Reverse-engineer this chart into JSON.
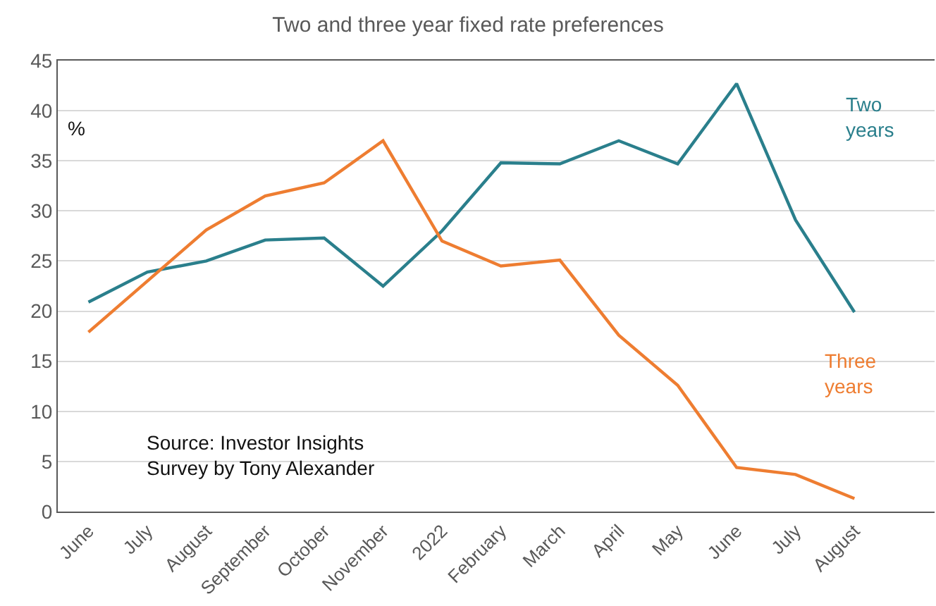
{
  "chart_data": {
    "type": "line",
    "title": "Two and three year fixed rate preferences",
    "ylabel": "%",
    "categories": [
      "June",
      "July",
      "August",
      "September",
      "October",
      "November",
      "2022",
      "February",
      "March",
      "April",
      "May",
      "June",
      "July",
      "August"
    ],
    "series": [
      {
        "name": "Two years",
        "color": "#2a7f8c",
        "values": [
          20.9,
          23.9,
          25.0,
          27.1,
          27.3,
          22.5,
          28.0,
          34.8,
          34.7,
          37.0,
          34.7,
          42.7,
          29.1,
          19.9
        ]
      },
      {
        "name": "Three years",
        "color": "#ee7d31",
        "values": [
          17.9,
          23.0,
          28.1,
          31.5,
          32.8,
          37.0,
          27.0,
          24.5,
          25.1,
          17.6,
          12.6,
          4.4,
          3.7,
          1.3
        ]
      }
    ],
    "ylim": [
      0,
      45
    ],
    "yticks": [
      0,
      5,
      10,
      15,
      20,
      25,
      30,
      35,
      40,
      45
    ],
    "grid": "y",
    "legend": false,
    "marker": "none",
    "line_style": "solid",
    "annotations": [
      "Source: Investor Insights\nSurvey by Tony Alexander"
    ]
  }
}
